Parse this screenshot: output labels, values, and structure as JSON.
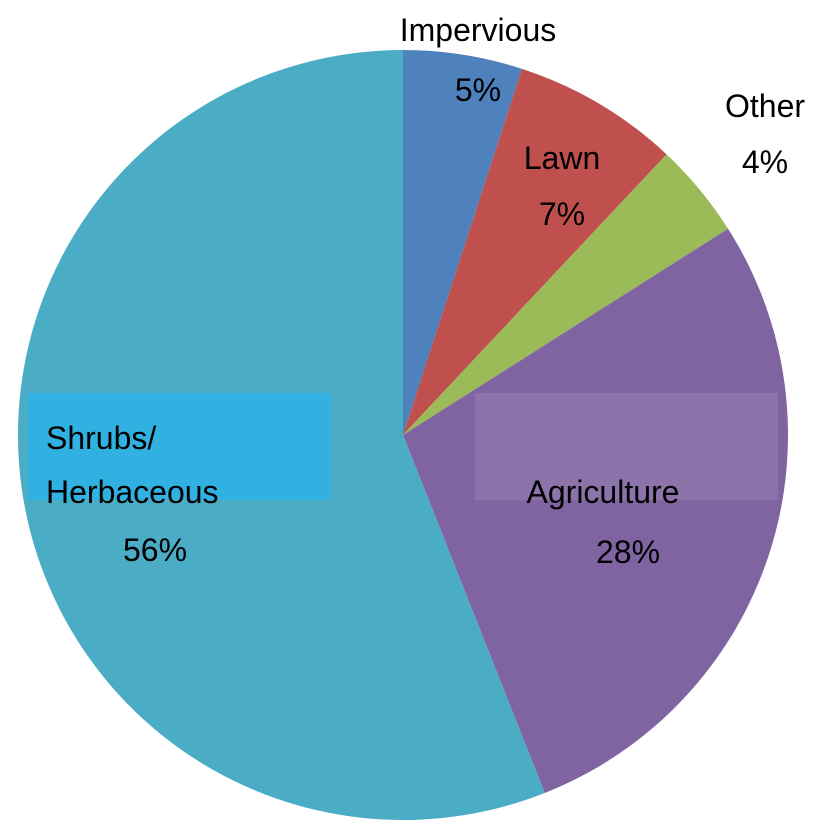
{
  "chart_data": {
    "type": "pie",
    "categories": [
      "Impervious",
      "Lawn",
      "Other",
      "Agriculture",
      "Shrubs/\nHerbaceous"
    ],
    "values": [
      5,
      7,
      4,
      28,
      56
    ],
    "value_labels": [
      "5%",
      "7%",
      "4%",
      "28%",
      "56%"
    ],
    "colors": [
      "#4f81bd",
      "#c0504d",
      "#9bbb59",
      "#8064a2",
      "#4bacc6"
    ]
  }
}
